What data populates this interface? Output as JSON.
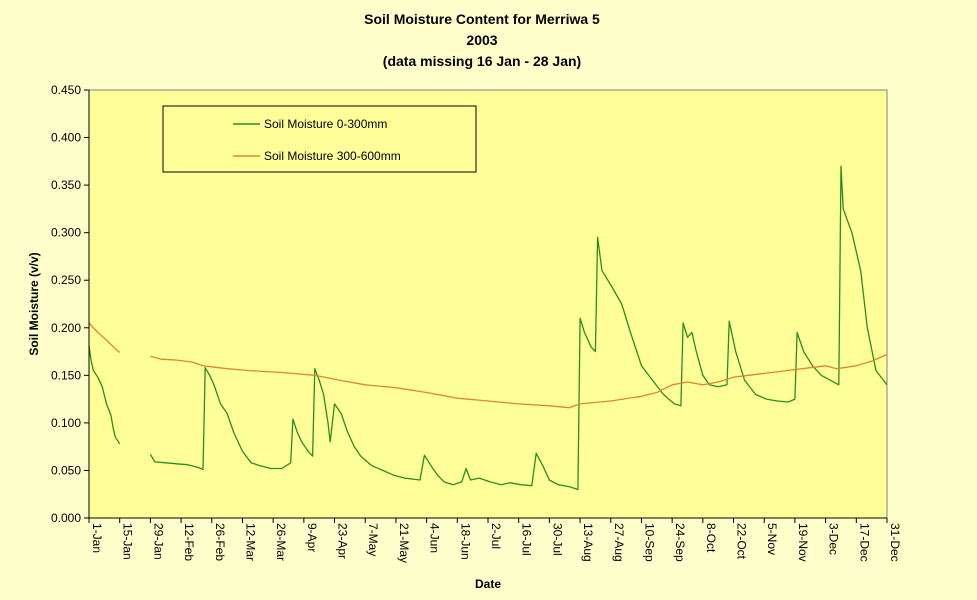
{
  "chart_data": {
    "type": "line",
    "title": [
      "Soil Moisture Content for Merriwa 5",
      "2003",
      "(data missing 16 Jan - 28 Jan)"
    ],
    "xlabel": "Date",
    "ylabel": "Soil Moisture (v/v)",
    "ylim": [
      0,
      0.45
    ],
    "yticks": [
      "0.000",
      "0.050",
      "0.100",
      "0.150",
      "0.200",
      "0.250",
      "0.300",
      "0.350",
      "0.400",
      "0.450"
    ],
    "xlim": [
      "2003-01-01",
      "2003-12-31"
    ],
    "xticks": [
      {
        "date": "2003-01-01",
        "label": "1-Jan"
      },
      {
        "date": "2003-01-15",
        "label": "15-Jan"
      },
      {
        "date": "2003-01-29",
        "label": "29-Jan"
      },
      {
        "date": "2003-02-12",
        "label": "12-Feb"
      },
      {
        "date": "2003-02-26",
        "label": "26-Feb"
      },
      {
        "date": "2003-03-12",
        "label": "12-Mar"
      },
      {
        "date": "2003-03-26",
        "label": "26-Mar"
      },
      {
        "date": "2003-04-09",
        "label": "9-Apr"
      },
      {
        "date": "2003-04-23",
        "label": "23-Apr"
      },
      {
        "date": "2003-05-07",
        "label": "7-May"
      },
      {
        "date": "2003-05-21",
        "label": "21-May"
      },
      {
        "date": "2003-06-04",
        "label": "4-Jun"
      },
      {
        "date": "2003-06-18",
        "label": "18-Jun"
      },
      {
        "date": "2003-07-02",
        "label": "2-Jul"
      },
      {
        "date": "2003-07-16",
        "label": "16-Jul"
      },
      {
        "date": "2003-07-30",
        "label": "30-Jul"
      },
      {
        "date": "2003-08-13",
        "label": "13-Aug"
      },
      {
        "date": "2003-08-27",
        "label": "27-Aug"
      },
      {
        "date": "2003-09-10",
        "label": "10-Sep"
      },
      {
        "date": "2003-09-24",
        "label": "24-Sep"
      },
      {
        "date": "2003-10-08",
        "label": "8-Oct"
      },
      {
        "date": "2003-10-22",
        "label": "22-Oct"
      },
      {
        "date": "2003-11-05",
        "label": "5-Nov"
      },
      {
        "date": "2003-11-19",
        "label": "19-Nov"
      },
      {
        "date": "2003-12-03",
        "label": "3-Dec"
      },
      {
        "date": "2003-12-17",
        "label": "17-Dec"
      },
      {
        "date": "2003-12-31",
        "label": "31-Dec"
      }
    ],
    "grid": false,
    "legend_position": "top-left",
    "colors": {
      "background": "#ffffcc",
      "plot_area": "#ffff99",
      "axis": "#000000",
      "series": [
        "#2e8b1f",
        "#d98a2b"
      ]
    },
    "series": [
      {
        "name": "Soil Moisture 0-300mm",
        "segments": [
          [
            [
              "2003-01-01",
              0.181
            ],
            [
              "2003-01-02",
              0.165
            ],
            [
              "2003-01-03",
              0.155
            ],
            [
              "2003-01-05",
              0.148
            ],
            [
              "2003-01-07",
              0.138
            ],
            [
              "2003-01-09",
              0.12
            ],
            [
              "2003-01-11",
              0.108
            ],
            [
              "2003-01-12",
              0.095
            ],
            [
              "2003-01-13",
              0.085
            ],
            [
              "2003-01-15",
              0.078
            ]
          ],
          [
            [
              "2003-01-29",
              0.067
            ],
            [
              "2003-01-31",
              0.059
            ],
            [
              "2003-02-05",
              0.058
            ],
            [
              "2003-02-10",
              0.057
            ],
            [
              "2003-02-15",
              0.056
            ],
            [
              "2003-02-20",
              0.053
            ],
            [
              "2003-02-22",
              0.051
            ],
            [
              "2003-02-23",
              0.158
            ],
            [
              "2003-02-25",
              0.15
            ],
            [
              "2003-02-27",
              0.14
            ],
            [
              "2003-03-02",
              0.12
            ],
            [
              "2003-03-05",
              0.11
            ],
            [
              "2003-03-08",
              0.09
            ],
            [
              "2003-03-12",
              0.07
            ],
            [
              "2003-03-16",
              0.058
            ],
            [
              "2003-03-20",
              0.055
            ],
            [
              "2003-03-25",
              0.052
            ],
            [
              "2003-03-30",
              0.052
            ],
            [
              "2003-04-03",
              0.058
            ],
            [
              "2003-04-04",
              0.104
            ],
            [
              "2003-04-06",
              0.09
            ],
            [
              "2003-04-08",
              0.08
            ],
            [
              "2003-04-11",
              0.07
            ],
            [
              "2003-04-13",
              0.065
            ],
            [
              "2003-04-14",
              0.157
            ],
            [
              "2003-04-16",
              0.145
            ],
            [
              "2003-04-18",
              0.13
            ],
            [
              "2003-04-20",
              0.1
            ],
            [
              "2003-04-21",
              0.08
            ],
            [
              "2003-04-23",
              0.12
            ],
            [
              "2003-04-26",
              0.11
            ],
            [
              "2003-04-29",
              0.09
            ],
            [
              "2003-05-02",
              0.075
            ],
            [
              "2003-05-05",
              0.065
            ],
            [
              "2003-05-10",
              0.055
            ],
            [
              "2003-05-15",
              0.05
            ],
            [
              "2003-05-20",
              0.045
            ],
            [
              "2003-05-25",
              0.042
            ],
            [
              "2003-06-01",
              0.04
            ],
            [
              "2003-06-03",
              0.066
            ],
            [
              "2003-06-06",
              0.055
            ],
            [
              "2003-06-09",
              0.045
            ],
            [
              "2003-06-12",
              0.038
            ],
            [
              "2003-06-16",
              0.035
            ],
            [
              "2003-06-20",
              0.038
            ],
            [
              "2003-06-22",
              0.052
            ],
            [
              "2003-06-24",
              0.04
            ],
            [
              "2003-06-28",
              0.042
            ],
            [
              "2003-07-03",
              0.038
            ],
            [
              "2003-07-08",
              0.035
            ],
            [
              "2003-07-12",
              0.037
            ],
            [
              "2003-07-17",
              0.035
            ],
            [
              "2003-07-22",
              0.034
            ],
            [
              "2003-07-24",
              0.068
            ],
            [
              "2003-07-27",
              0.055
            ],
            [
              "2003-07-30",
              0.04
            ],
            [
              "2003-08-03",
              0.035
            ],
            [
              "2003-08-08",
              0.033
            ],
            [
              "2003-08-12",
              0.03
            ],
            [
              "2003-08-13",
              0.21
            ],
            [
              "2003-08-15",
              0.195
            ],
            [
              "2003-08-18",
              0.18
            ],
            [
              "2003-08-20",
              0.175
            ],
            [
              "2003-08-21",
              0.295
            ],
            [
              "2003-08-23",
              0.26
            ],
            [
              "2003-08-27",
              0.245
            ],
            [
              "2003-09-01",
              0.225
            ],
            [
              "2003-09-05",
              0.195
            ],
            [
              "2003-09-10",
              0.16
            ],
            [
              "2003-09-15",
              0.145
            ],
            [
              "2003-09-20",
              0.13
            ],
            [
              "2003-09-25",
              0.12
            ],
            [
              "2003-09-28",
              0.118
            ],
            [
              "2003-09-29",
              0.205
            ],
            [
              "2003-10-01",
              0.19
            ],
            [
              "2003-10-03",
              0.195
            ],
            [
              "2003-10-05",
              0.175
            ],
            [
              "2003-10-08",
              0.15
            ],
            [
              "2003-10-11",
              0.14
            ],
            [
              "2003-10-15",
              0.138
            ],
            [
              "2003-10-19",
              0.14
            ],
            [
              "2003-10-20",
              0.207
            ],
            [
              "2003-10-23",
              0.175
            ],
            [
              "2003-10-27",
              0.145
            ],
            [
              "2003-11-01",
              0.13
            ],
            [
              "2003-11-06",
              0.125
            ],
            [
              "2003-11-11",
              0.123
            ],
            [
              "2003-11-16",
              0.122
            ],
            [
              "2003-11-19",
              0.125
            ],
            [
              "2003-11-20",
              0.195
            ],
            [
              "2003-11-23",
              0.175
            ],
            [
              "2003-11-27",
              0.16
            ],
            [
              "2003-12-01",
              0.15
            ],
            [
              "2003-12-05",
              0.145
            ],
            [
              "2003-12-09",
              0.14
            ],
            [
              "2003-12-10",
              0.37
            ],
            [
              "2003-12-11",
              0.325
            ],
            [
              "2003-12-15",
              0.3
            ],
            [
              "2003-12-19",
              0.26
            ],
            [
              "2003-12-22",
              0.2
            ],
            [
              "2003-12-26",
              0.155
            ],
            [
              "2003-12-31",
              0.14
            ]
          ]
        ]
      },
      {
        "name": "Soil Moisture 300-600mm",
        "segments": [
          [
            [
              "2003-01-01",
              0.205
            ],
            [
              "2003-01-05",
              0.195
            ],
            [
              "2003-01-09",
              0.187
            ],
            [
              "2003-01-13",
              0.178
            ],
            [
              "2003-01-15",
              0.174
            ]
          ],
          [
            [
              "2003-01-29",
              0.17
            ],
            [
              "2003-02-03",
              0.167
            ],
            [
              "2003-02-10",
              0.166
            ],
            [
              "2003-02-17",
              0.164
            ],
            [
              "2003-02-22",
              0.16
            ],
            [
              "2003-03-05",
              0.157
            ],
            [
              "2003-03-15",
              0.155
            ],
            [
              "2003-03-30",
              0.153
            ],
            [
              "2003-04-14",
              0.15
            ],
            [
              "2003-04-25",
              0.145
            ],
            [
              "2003-05-07",
              0.14
            ],
            [
              "2003-05-21",
              0.137
            ],
            [
              "2003-06-04",
              0.132
            ],
            [
              "2003-06-18",
              0.126
            ],
            [
              "2003-07-02",
              0.123
            ],
            [
              "2003-07-16",
              0.12
            ],
            [
              "2003-07-30",
              0.118
            ],
            [
              "2003-08-08",
              0.116
            ],
            [
              "2003-08-13",
              0.12
            ],
            [
              "2003-08-27",
              0.123
            ],
            [
              "2003-09-10",
              0.128
            ],
            [
              "2003-09-17",
              0.132
            ],
            [
              "2003-09-24",
              0.14
            ],
            [
              "2003-10-01",
              0.143
            ],
            [
              "2003-10-08",
              0.14
            ],
            [
              "2003-10-15",
              0.143
            ],
            [
              "2003-10-22",
              0.148
            ],
            [
              "2003-11-05",
              0.152
            ],
            [
              "2003-11-19",
              0.156
            ],
            [
              "2003-11-26",
              0.158
            ],
            [
              "2003-12-03",
              0.16
            ],
            [
              "2003-12-08",
              0.157
            ],
            [
              "2003-12-17",
              0.16
            ],
            [
              "2003-12-24",
              0.165
            ],
            [
              "2003-12-31",
              0.172
            ]
          ]
        ]
      }
    ]
  }
}
